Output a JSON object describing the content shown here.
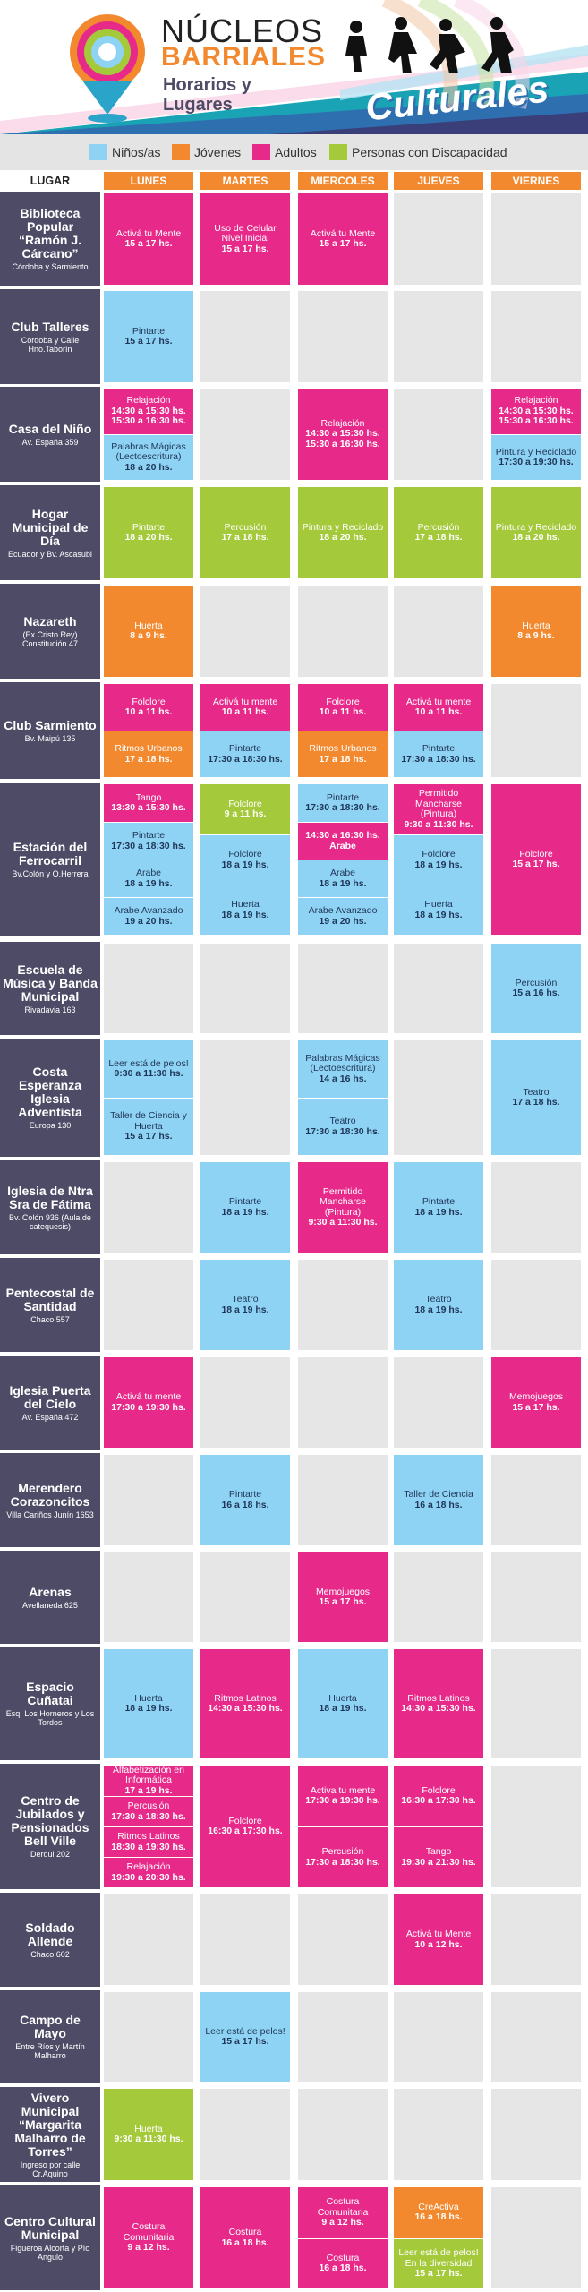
{
  "header": {
    "title_line1": "NÚCLEOS",
    "title_line2": "BARRIALES",
    "subtitle_line1": "Horarios y",
    "subtitle_line2": "Lugares",
    "culturales": "Culturales"
  },
  "colors": {
    "ninos": "#8fd3f4",
    "jovenes": "#f2892f",
    "adultos": "#e72a8a",
    "discapacidad": "#a4c93b",
    "place_bg": "#4e4b66",
    "empty": "#e6e6e6"
  },
  "legend": [
    {
      "key": "ninos",
      "label": "Niños/as"
    },
    {
      "key": "jovenes",
      "label": "Jóvenes"
    },
    {
      "key": "adultos",
      "label": "Adultos"
    },
    {
      "key": "discapacidad",
      "label": "Personas con Discapacidad"
    }
  ],
  "columns": [
    "LUGAR",
    "LUNES",
    "MARTES",
    "MIERCOLES",
    "JUEVES",
    "VIERNES"
  ],
  "rows": [
    {
      "name": "Biblioteca Popular “Ramón J. Cárcano”",
      "addr": "Córdoba y Sarmiento",
      "days": [
        [
          {
            "c": "adultos",
            "t": "Activá tu Mente",
            "h": "15 a 17 hs."
          }
        ],
        [
          {
            "c": "adultos",
            "t": "Uso de Celular Nivel Inicial",
            "h": "15 a 17 hs."
          }
        ],
        [
          {
            "c": "adultos",
            "t": "Activá tu Mente",
            "h": "15 a 17 hs."
          }
        ],
        [],
        []
      ]
    },
    {
      "name": "Club Talleres",
      "addr": "Córdoba y Calle Hno.Taborín",
      "days": [
        [
          {
            "c": "ninos",
            "t": "Pintarte",
            "h": "15 a 17 hs."
          }
        ],
        [],
        [],
        [],
        []
      ]
    },
    {
      "name": "Casa del Niño",
      "addr": "Av. España 359",
      "days": [
        [
          {
            "c": "adultos",
            "t": "Relajación",
            "h": "14:30 a 15:30 hs. 15:30 a 16:30 hs."
          },
          {
            "c": "ninos",
            "t": "Palabras Mágicas (Lectoescritura)",
            "h": "18 a 20 hs."
          }
        ],
        [],
        [
          {
            "c": "adultos",
            "t": "Relajación",
            "h": "14:30 a 15:30 hs. 15:30 a 16:30 hs."
          }
        ],
        [],
        [
          {
            "c": "adultos",
            "t": "Relajación",
            "h": "14:30 a 15:30 hs. 15:30 a 16:30 hs."
          },
          {
            "c": "ninos",
            "t": "Pintura y Reciclado",
            "h": "17:30 a 19:30 hs."
          }
        ]
      ]
    },
    {
      "name": "Hogar Municipal de Día",
      "addr": "Ecuador y Bv. Ascasubi",
      "days": [
        [
          {
            "c": "discapacidad",
            "t": "Pintarte",
            "h": "18 a 20 hs."
          }
        ],
        [
          {
            "c": "discapacidad",
            "t": "Percusión",
            "h": "17 a 18 hs."
          }
        ],
        [
          {
            "c": "discapacidad",
            "t": "Pintura y Reciclado",
            "h": "18 a 20 hs."
          }
        ],
        [
          {
            "c": "discapacidad",
            "t": "Percusión",
            "h": "17 a 18 hs."
          }
        ],
        [
          {
            "c": "discapacidad",
            "t": "Pintura y Reciclado",
            "h": "18 a 20 hs."
          }
        ]
      ]
    },
    {
      "name": "Nazareth",
      "addr": "(Ex Cristo Rey) Constitución 47",
      "days": [
        [
          {
            "c": "jovenes",
            "t": "Huerta",
            "h": "8 a 9 hs."
          }
        ],
        [],
        [],
        [],
        [
          {
            "c": "jovenes",
            "t": "Huerta",
            "h": "8 a 9 hs."
          }
        ]
      ]
    },
    {
      "name": "Club Sarmiento",
      "addr": "Bv. Maipú 135",
      "days": [
        [
          {
            "c": "adultos",
            "t": "Folclore",
            "h": "10 a 11 hs."
          },
          {
            "c": "jovenes",
            "t": "Ritmos Urbanos",
            "h": "17 a 18 hs."
          }
        ],
        [
          {
            "c": "adultos",
            "t": "Activá tu mente",
            "h": "10 a 11 hs."
          },
          {
            "c": "ninos",
            "t": "Pintarte",
            "h": "17:30 a 18:30 hs."
          }
        ],
        [
          {
            "c": "adultos",
            "t": "Folclore",
            "h": "10 a 11 hs."
          },
          {
            "c": "jovenes",
            "t": "Ritmos Urbanos",
            "h": "17 a 18 hs."
          }
        ],
        [
          {
            "c": "adultos",
            "t": "Activá tu mente",
            "h": "10 a 11 hs."
          },
          {
            "c": "ninos",
            "t": "Pintarte",
            "h": "17:30 a 18:30 hs."
          }
        ],
        []
      ]
    },
    {
      "name": "Estación del Ferrocarril",
      "addr": "Bv.Colón y O.Herrera",
      "days": [
        [
          {
            "c": "adultos",
            "t": "Tango",
            "h": "13:30 a 15:30 hs."
          },
          {
            "c": "ninos",
            "t": "Pintarte",
            "h": "17:30 a 18:30 hs."
          },
          {
            "c": "ninos",
            "t": "Arabe",
            "h": "18 a 19 hs."
          },
          {
            "c": "ninos",
            "t": "Arabe Avanzado",
            "h": "19 a 20 hs."
          }
        ],
        [
          {
            "c": "discapacidad",
            "t": "Folclore",
            "h": "9 a 11 hs."
          },
          {
            "c": "ninos",
            "t": "Folclore",
            "h": "18 a 19 hs."
          },
          {
            "c": "ninos",
            "t": "Huerta",
            "h": "18 a 19 hs."
          }
        ],
        [
          {
            "c": "ninos",
            "t": "Pintarte",
            "h": "17:30 a 18:30 hs."
          },
          {
            "c": "adultos",
            "t": "",
            "h": "14:30 a 16:30 hs. Arabe"
          },
          {
            "c": "ninos",
            "t": "Arabe",
            "h": "18 a 19 hs."
          },
          {
            "c": "ninos",
            "t": "Arabe Avanzado",
            "h": "19 a 20 hs."
          }
        ],
        [
          {
            "c": "adultos",
            "t": "Permitido Mancharse (Pintura)",
            "h": "9:30 a 11:30 hs."
          },
          {
            "c": "ninos",
            "t": "Folclore",
            "h": "18 a 19 hs."
          },
          {
            "c": "ninos",
            "t": "Huerta",
            "h": "18 a 19 hs."
          }
        ],
        [
          {
            "c": "adultos",
            "t": "Folclore",
            "h": "15 a 17 hs."
          }
        ]
      ]
    },
    {
      "name": "Escuela de Música y Banda Municipal",
      "addr": "Rivadavia 163",
      "days": [
        [],
        [],
        [],
        [],
        [
          {
            "c": "ninos",
            "t": "Percusión",
            "h": "15 a 16 hs."
          }
        ]
      ]
    },
    {
      "name": "Costa Esperanza Iglesia Adventista",
      "addr": "Europa 130",
      "days": [
        [
          {
            "c": "ninos",
            "t": "Leer está de pelos!",
            "h": "9:30 a 11:30 hs."
          },
          {
            "c": "ninos",
            "t": "Taller de Ciencia y Huerta",
            "h": "15 a 17 hs."
          }
        ],
        [],
        [
          {
            "c": "ninos",
            "t": "Palabras Mágicas (Lectoescritura)",
            "h": "14 a 16 hs."
          },
          {
            "c": "ninos",
            "t": "Teatro",
            "h": "17:30 a 18:30 hs."
          }
        ],
        [],
        [
          {
            "c": "ninos",
            "t": "Teatro",
            "h": "17 a 18 hs."
          }
        ]
      ]
    },
    {
      "name": "Iglesia de Ntra Sra de Fátima",
      "addr": "Bv. Colón 936 (Aula de catequesis)",
      "days": [
        [],
        [
          {
            "c": "ninos",
            "t": "Pintarte",
            "h": "18 a 19 hs."
          }
        ],
        [
          {
            "c": "adultos",
            "t": "Permitido Mancharse (Pintura)",
            "h": "9:30 a 11:30 hs."
          }
        ],
        [
          {
            "c": "ninos",
            "t": "Pintarte",
            "h": "18 a 19 hs."
          }
        ],
        []
      ]
    },
    {
      "name": "Pentecostal de Santidad",
      "addr": "Chaco 557",
      "days": [
        [],
        [
          {
            "c": "ninos",
            "t": "Teatro",
            "h": "18 a 19 hs."
          }
        ],
        [],
        [
          {
            "c": "ninos",
            "t": "Teatro",
            "h": "18 a 19 hs."
          }
        ],
        []
      ]
    },
    {
      "name": "Iglesia Puerta del Cielo",
      "addr": "Av. España 472",
      "days": [
        [
          {
            "c": "adultos",
            "t": "Activá tu mente",
            "h": "17:30 a 19:30 hs."
          }
        ],
        [],
        [],
        [],
        [
          {
            "c": "adultos",
            "t": "Memojuegos",
            "h": "15 a 17 hs."
          }
        ]
      ]
    },
    {
      "name": "Merendero Corazoncitos",
      "addr": "Villa Cariños Junín 1653",
      "days": [
        [],
        [
          {
            "c": "ninos",
            "t": "Pintarte",
            "h": "16 a 18 hs."
          }
        ],
        [],
        [
          {
            "c": "ninos",
            "t": "Taller de Ciencia",
            "h": "16 a 18 hs."
          }
        ],
        []
      ]
    },
    {
      "name": "Arenas",
      "addr": "Avellaneda 625",
      "days": [
        [],
        [],
        [
          {
            "c": "adultos",
            "t": "Memojuegos",
            "h": "15 a 17 hs."
          }
        ],
        [],
        []
      ]
    },
    {
      "name": "Espacio Cuñatai",
      "addr": "Esq. Los Horneros y Los Tordos",
      "days": [
        [
          {
            "c": "ninos",
            "t": "Huerta",
            "h": "18 a 19 hs."
          }
        ],
        [
          {
            "c": "adultos",
            "t": "Ritmos Latinos",
            "h": "14:30 a 15:30 hs."
          }
        ],
        [
          {
            "c": "ninos",
            "t": "Huerta",
            "h": "18 a 19 hs."
          }
        ],
        [
          {
            "c": "adultos",
            "t": "Ritmos Latinos",
            "h": "14:30 a 15:30 hs."
          }
        ],
        []
      ]
    },
    {
      "name": "Centro de Jubilados y Pensionados Bell Ville",
      "addr": "Derqui 202",
      "days": [
        [
          {
            "c": "adultos",
            "t": "Alfabetización en Informática",
            "h": "17 a 19 hs."
          },
          {
            "c": "adultos",
            "t": "Percusión",
            "h": "17:30 a 18:30 hs."
          },
          {
            "c": "adultos",
            "t": "Ritmos Latinos",
            "h": "18:30 a 19:30 hs."
          },
          {
            "c": "adultos",
            "t": "Relajación",
            "h": "19:30 a 20:30 hs."
          }
        ],
        [
          {
            "c": "adultos",
            "t": "Folclore",
            "h": "16:30 a 17:30 hs."
          }
        ],
        [
          {
            "c": "adultos",
            "t": "Activa tu mente",
            "h": "17:30 a 19:30 hs."
          },
          {
            "c": "adultos",
            "t": "Percusión",
            "h": "17:30 a 18:30 hs."
          }
        ],
        [
          {
            "c": "adultos",
            "t": "Folclore",
            "h": "16:30 a 17:30 hs."
          },
          {
            "c": "adultos",
            "t": "Tango",
            "h": "19:30 a 21:30 hs."
          }
        ],
        []
      ]
    },
    {
      "name": "Soldado Allende",
      "addr": "Chaco 602",
      "days": [
        [],
        [],
        [],
        [
          {
            "c": "adultos",
            "t": "Activá tu Mente",
            "h": "10 a 12 hs."
          }
        ],
        []
      ]
    },
    {
      "name": "Campo de Mayo",
      "addr": "Entre Ríos y Martín Malharro",
      "days": [
        [],
        [
          {
            "c": "ninos",
            "t": "Leer está de pelos!",
            "h": "15 a 17 hs."
          }
        ],
        [],
        [],
        []
      ]
    },
    {
      "name": "Vivero Municipal “Margarita Malharro de Torres”",
      "addr": "Ingreso por calle Cr.Aquino",
      "days": [
        [
          {
            "c": "discapacidad",
            "t": "Huerta",
            "h": "9:30 a 11:30 hs."
          }
        ],
        [],
        [],
        [],
        []
      ]
    },
    {
      "name": "Centro Cultural Municipal",
      "addr": "Figueroa Alcorta y Pío Angulo",
      "days": [
        [
          {
            "c": "adultos",
            "t": "Costura Comunitaria",
            "h": "9 a 12 hs."
          }
        ],
        [
          {
            "c": "adultos",
            "t": "Costura",
            "h": "16 a 18 hs."
          }
        ],
        [
          {
            "c": "adultos",
            "t": "Costura Comunitaria",
            "h": "9 a 12 hs."
          },
          {
            "c": "adultos",
            "t": "Costura",
            "h": "16 a 18 hs."
          }
        ],
        [
          {
            "c": "jovenes",
            "t": "CreActiva",
            "h": "16 a 18 hs."
          },
          {
            "c": "discapacidad",
            "t": "Leer está de pelos! En la diversidad",
            "h": "15 a 17 hs."
          }
        ],
        []
      ]
    }
  ]
}
